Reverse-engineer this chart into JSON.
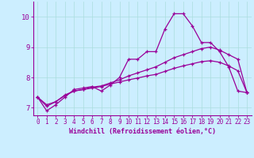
{
  "title": "",
  "xlabel": "Windchill (Refroidissement éolien,°C)",
  "ylabel": "",
  "bg_color": "#cceeff",
  "line_color": "#990099",
  "xlim": [
    -0.5,
    23.5
  ],
  "ylim": [
    6.75,
    10.5
  ],
  "yticks": [
    7,
    8,
    9,
    10
  ],
  "xticks": [
    0,
    1,
    2,
    3,
    4,
    5,
    6,
    7,
    8,
    9,
    10,
    11,
    12,
    13,
    14,
    15,
    16,
    17,
    18,
    19,
    20,
    21,
    22,
    23
  ],
  "series": [
    [
      7.35,
      6.9,
      7.1,
      7.35,
      7.6,
      7.65,
      7.7,
      7.55,
      7.75,
      8.0,
      8.6,
      8.6,
      8.85,
      8.85,
      9.6,
      10.1,
      10.1,
      9.7,
      9.15,
      9.15,
      8.85,
      8.35,
      7.55,
      7.5
    ],
    [
      7.35,
      7.05,
      7.2,
      7.4,
      7.55,
      7.6,
      7.68,
      7.72,
      7.82,
      7.92,
      8.05,
      8.15,
      8.25,
      8.35,
      8.5,
      8.65,
      8.75,
      8.85,
      8.95,
      9.0,
      8.9,
      8.75,
      8.6,
      7.5
    ],
    [
      7.35,
      7.1,
      7.2,
      7.42,
      7.55,
      7.6,
      7.65,
      7.7,
      7.78,
      7.85,
      7.92,
      7.98,
      8.05,
      8.1,
      8.2,
      8.3,
      8.38,
      8.45,
      8.52,
      8.55,
      8.5,
      8.38,
      8.22,
      7.5
    ]
  ],
  "xlabel_fontsize": 6.0,
  "tick_fontsize": 5.5,
  "ytick_fontsize": 6.5,
  "grid_color": "#aadddd",
  "spine_color": "#990099"
}
